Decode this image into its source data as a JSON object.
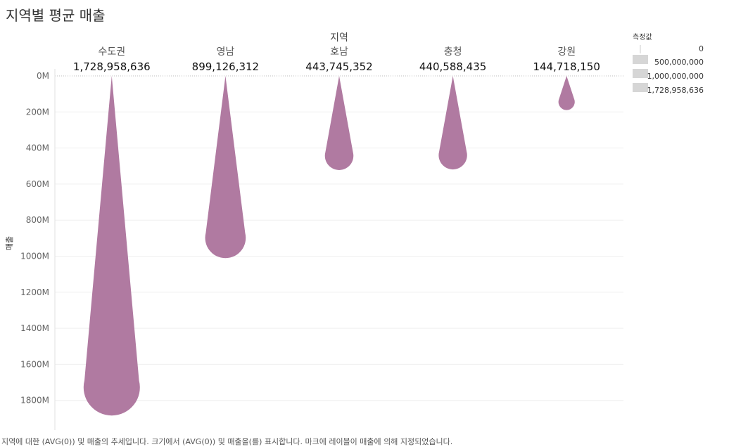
{
  "title": "지역별 평균 매출",
  "chart_data": {
    "type": "bar",
    "x_title": "지역",
    "y_title": "매출",
    "categories": [
      "수도권",
      "영남",
      "호남",
      "충청",
      "강원"
    ],
    "values": [
      1728958636,
      899126312,
      443745352,
      440588435,
      144718150
    ],
    "value_labels": [
      "1,728,958,636",
      "899,126,312",
      "443,745,352",
      "440,588,435",
      "144,718,150"
    ],
    "ylim": [
      0,
      1900000000
    ],
    "y_ticks": [
      0,
      200000000,
      400000000,
      600000000,
      800000000,
      1000000000,
      1200000000,
      1400000000,
      1600000000,
      1800000000
    ],
    "y_tick_labels": [
      "0M",
      "200M",
      "400M",
      "600M",
      "800M",
      "1000M",
      "1200M",
      "1400M",
      "1600M",
      "1800M"
    ],
    "y_reversed": true,
    "grid": true,
    "mark_color": "#b07aa1",
    "legend": {
      "title": "측정값",
      "placement": "top-right",
      "items": [
        {
          "label": "0",
          "value": 0
        },
        {
          "label": "500,000,000",
          "value": 500000000
        },
        {
          "label": "1,000,000,000",
          "value": 1000000000
        },
        {
          "label": "1,728,958,636",
          "value": 1728958636
        }
      ]
    },
    "footnote": "지역에 대한 (AVG(0)) 및 매출의 추세입니다. 크기에서 (AVG(0)) 및 매출을(를) 표시합니다. 마크에 레이블이 매출에 의해 지정되었습니다."
  }
}
